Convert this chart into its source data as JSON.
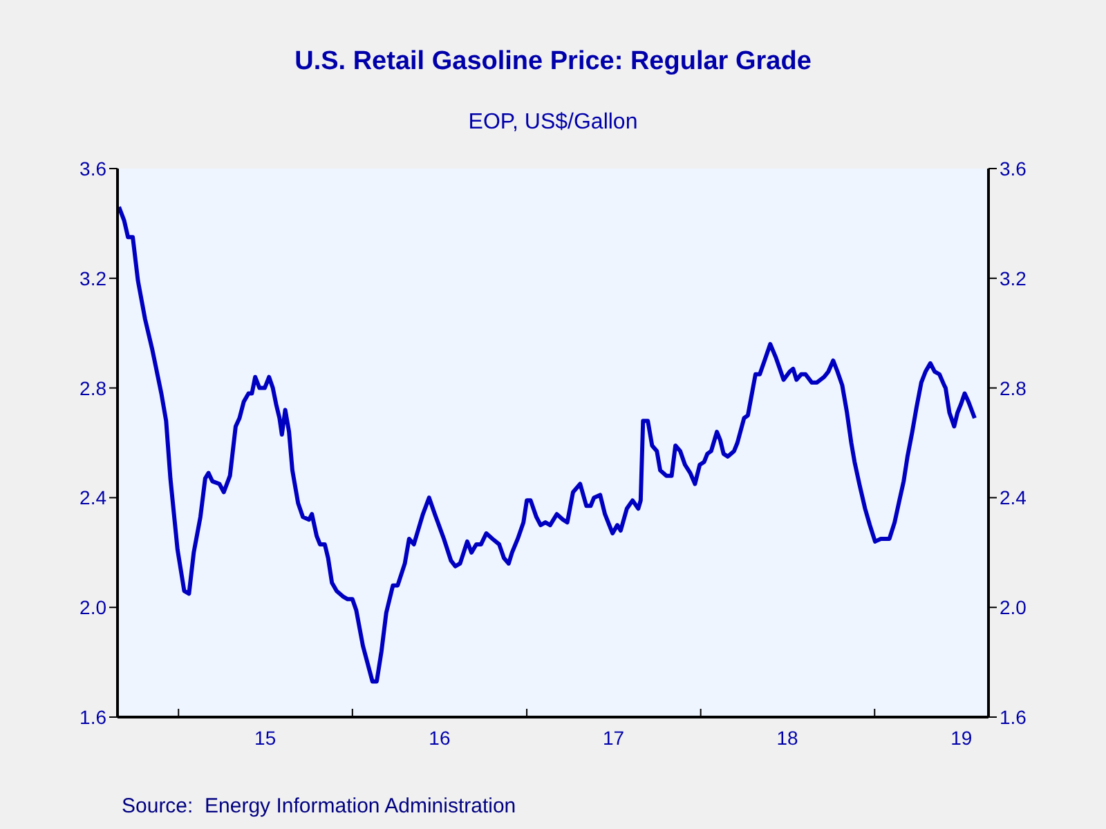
{
  "chart_data": {
    "type": "line",
    "title": "U.S. Retail Gasoline Price: Regular Grade",
    "subtitle": "EOP, US$/Gallon",
    "annotations": [
      "Source:  Energy Information Administration"
    ],
    "color": "#0000c0",
    "x": [
      "2014-08-29",
      "2014-09-09",
      "2014-09-17",
      "2014-09-27",
      "2014-10-08",
      "2014-10-23",
      "2014-11-07",
      "2014-11-26",
      "2014-12-06",
      "2014-12-15",
      "2014-12-30",
      "2015-01-13",
      "2015-01-23",
      "2015-02-02",
      "2015-02-16",
      "2015-02-26",
      "2015-03-05",
      "2015-03-13",
      "2015-03-28",
      "2015-04-06",
      "2015-04-19",
      "2015-05-01",
      "2015-05-09",
      "2015-05-18",
      "2015-05-28",
      "2015-06-04",
      "2015-06-11",
      "2015-06-20",
      "2015-07-01",
      "2015-07-10",
      "2015-07-18",
      "2015-07-25",
      "2015-08-01",
      "2015-08-06",
      "2015-08-13",
      "2015-08-21",
      "2015-08-28",
      "2015-09-09",
      "2015-09-19",
      "2015-10-02",
      "2015-10-08",
      "2015-10-18",
      "2015-10-25",
      "2015-11-04",
      "2015-11-11",
      "2015-11-19",
      "2015-11-29",
      "2015-12-12",
      "2015-12-22",
      "2016-01-01",
      "2016-01-09",
      "2016-01-23",
      "2016-02-12",
      "2016-02-21",
      "2016-03-02",
      "2016-03-12",
      "2016-03-26",
      "2016-04-05",
      "2016-04-20",
      "2016-04-29",
      "2016-05-09",
      "2016-05-28",
      "2016-06-10",
      "2016-06-22",
      "2016-07-11",
      "2016-07-26",
      "2016-08-04",
      "2016-08-14",
      "2016-08-29",
      "2016-09-07",
      "2016-09-17",
      "2016-09-27",
      "2016-10-08",
      "2016-10-21",
      "2016-11-04",
      "2016-11-14",
      "2016-11-24",
      "2016-12-01",
      "2016-12-13",
      "2016-12-25",
      "2017-01-01",
      "2017-01-09",
      "2017-01-21",
      "2017-01-30",
      "2017-02-09",
      "2017-02-19",
      "2017-03-05",
      "2017-03-18",
      "2017-03-27",
      "2017-04-08",
      "2017-04-23",
      "2017-05-06",
      "2017-05-15",
      "2017-05-22",
      "2017-06-04",
      "2017-06-14",
      "2017-06-30",
      "2017-07-10",
      "2017-07-17",
      "2017-07-30",
      "2017-08-11",
      "2017-08-23",
      "2017-08-28",
      "2017-09-02",
      "2017-09-12",
      "2017-09-21",
      "2017-10-01",
      "2017-10-08",
      "2017-10-21",
      "2017-11-01",
      "2017-11-09",
      "2017-11-19",
      "2017-11-29",
      "2017-12-10",
      "2017-12-20",
      "2017-12-30",
      "2018-01-08",
      "2018-01-15",
      "2018-01-23",
      "2018-02-04",
      "2018-02-11",
      "2018-02-18",
      "2018-02-27",
      "2018-03-12",
      "2018-03-19",
      "2018-04-02",
      "2018-04-10",
      "2018-04-26",
      "2018-05-05",
      "2018-05-15",
      "2018-05-27",
      "2018-06-08",
      "2018-06-16",
      "2018-06-24",
      "2018-07-07",
      "2018-07-14",
      "2018-07-21",
      "2018-07-31",
      "2018-08-09",
      "2018-08-22",
      "2018-09-02",
      "2018-09-17",
      "2018-09-26",
      "2018-10-06",
      "2018-10-15",
      "2018-10-25",
      "2018-11-04",
      "2018-11-13",
      "2018-11-20",
      "2018-11-30",
      "2018-12-12",
      "2018-12-22",
      "2019-01-02",
      "2019-01-14",
      "2019-02-01",
      "2019-02-12",
      "2019-02-22",
      "2019-03-03",
      "2019-03-11",
      "2019-03-21",
      "2019-03-30",
      "2019-04-09",
      "2019-04-18",
      "2019-04-28",
      "2019-05-07",
      "2019-05-17",
      "2019-05-27",
      "2019-05-30",
      "2019-06-07",
      "2019-06-17",
      "2019-06-24",
      "2019-07-01",
      "2019-07-09",
      "2019-07-17",
      "2019-07-30"
    ],
    "values": [
      3.46,
      3.41,
      3.35,
      3.35,
      3.19,
      3.05,
      2.94,
      2.78,
      2.68,
      2.47,
      2.21,
      2.06,
      2.05,
      2.2,
      2.33,
      2.47,
      2.49,
      2.46,
      2.45,
      2.42,
      2.48,
      2.66,
      2.69,
      2.75,
      2.78,
      2.78,
      2.84,
      2.8,
      2.8,
      2.84,
      2.8,
      2.74,
      2.69,
      2.63,
      2.72,
      2.64,
      2.5,
      2.38,
      2.33,
      2.32,
      2.34,
      2.26,
      2.23,
      2.23,
      2.18,
      2.09,
      2.06,
      2.04,
      2.03,
      2.03,
      1.99,
      1.86,
      1.73,
      1.73,
      1.84,
      1.98,
      2.08,
      2.08,
      2.16,
      2.25,
      2.23,
      2.34,
      2.4,
      2.34,
      2.25,
      2.17,
      2.15,
      2.16,
      2.24,
      2.2,
      2.23,
      2.23,
      2.27,
      2.25,
      2.23,
      2.18,
      2.16,
      2.2,
      2.25,
      2.31,
      2.39,
      2.39,
      2.33,
      2.3,
      2.31,
      2.3,
      2.34,
      2.32,
      2.31,
      2.42,
      2.45,
      2.37,
      2.37,
      2.4,
      2.41,
      2.34,
      2.27,
      2.3,
      2.28,
      2.36,
      2.39,
      2.36,
      2.39,
      2.68,
      2.68,
      2.59,
      2.57,
      2.5,
      2.48,
      2.48,
      2.59,
      2.57,
      2.52,
      2.49,
      2.45,
      2.52,
      2.53,
      2.56,
      2.57,
      2.64,
      2.61,
      2.56,
      2.55,
      2.57,
      2.6,
      2.69,
      2.7,
      2.85,
      2.85,
      2.9,
      2.96,
      2.91,
      2.87,
      2.83,
      2.86,
      2.87,
      2.83,
      2.85,
      2.85,
      2.82,
      2.82,
      2.84,
      2.86,
      2.9,
      2.86,
      2.81,
      2.71,
      2.6,
      2.53,
      2.45,
      2.36,
      2.3,
      2.24,
      2.25,
      2.25,
      2.31,
      2.39,
      2.46,
      2.55,
      2.64,
      2.73,
      2.82,
      2.86,
      2.89,
      2.86,
      2.85,
      2.81,
      2.8,
      2.71,
      2.66,
      2.71,
      2.74,
      2.78,
      2.75,
      2.69
    ],
    "xlim": [
      "2014-08-26",
      "2019-08-28"
    ],
    "xticks": [
      {
        "value": "2015-01-01",
        "label": null
      },
      {
        "value": "2015-07-02",
        "label": "15"
      },
      {
        "value": "2016-01-01",
        "label": null
      },
      {
        "value": "2016-07-02",
        "label": "16"
      },
      {
        "value": "2017-01-01",
        "label": null
      },
      {
        "value": "2017-07-02",
        "label": "17"
      },
      {
        "value": "2018-01-01",
        "label": null
      },
      {
        "value": "2018-07-02",
        "label": "18"
      },
      {
        "value": "2019-01-01",
        "label": null
      },
      {
        "value": "2019-07-02",
        "label": "19"
      }
    ],
    "ylim": [
      1.6,
      3.6
    ],
    "yticks": [
      {
        "value": 1.6,
        "label": "1.6"
      },
      {
        "value": 2.0,
        "label": "2.0"
      },
      {
        "value": 2.4,
        "label": "2.4"
      },
      {
        "value": 2.8,
        "label": "2.8"
      },
      {
        "value": 3.2,
        "label": "3.2"
      },
      {
        "value": 3.6,
        "label": "3.6"
      }
    ],
    "y2lim": [
      1.6,
      3.6
    ],
    "y2ticks": [
      {
        "value": 1.6,
        "label": "1.6"
      },
      {
        "value": 2.0,
        "label": "2.0"
      },
      {
        "value": 2.4,
        "label": "2.4"
      },
      {
        "value": 2.8,
        "label": "2.8"
      },
      {
        "value": 3.2,
        "label": "3.2"
      },
      {
        "value": 3.6,
        "label": "3.6"
      }
    ],
    "grid": false,
    "legend": false,
    "line_style": "solid"
  }
}
